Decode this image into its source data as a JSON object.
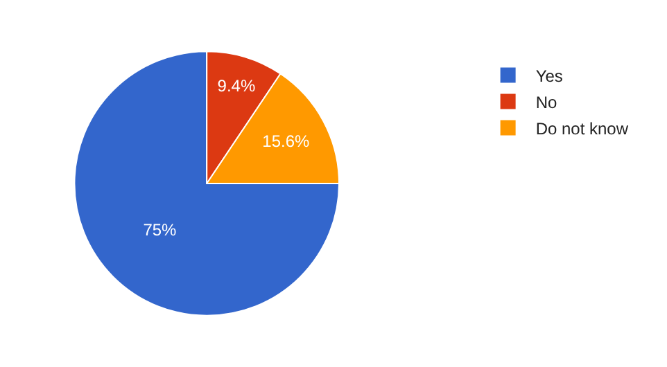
{
  "chart_data": {
    "type": "pie",
    "categories": [
      "Yes",
      "No",
      "Do not know"
    ],
    "values": [
      75,
      9.4,
      15.6
    ],
    "colors": [
      "#3366cc",
      "#dc3912",
      "#ff9900"
    ],
    "value_labels": [
      "75%",
      "9.4%",
      "15.6%"
    ],
    "legend": "top right"
  }
}
